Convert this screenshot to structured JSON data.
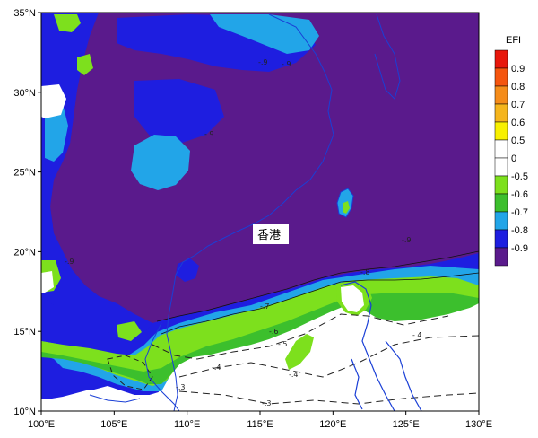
{
  "map": {
    "place_label": "香港",
    "lon_labels": [
      "100°E",
      "105°E",
      "110°E",
      "115°E",
      "120°E",
      "125°E",
      "130°E"
    ],
    "lat_labels": [
      "10°N",
      "15°N",
      "20°N",
      "25°N",
      "30°N",
      "35°N"
    ],
    "contour_labels": [
      "-.9",
      "-.8",
      "-.7",
      "-.6",
      "-.5",
      "-.4",
      "-.3"
    ]
  },
  "legend": {
    "title": "EFI",
    "items": [
      {
        "label": "0.9",
        "color": "#e8170b"
      },
      {
        "label": "0.8",
        "color": "#f5550e"
      },
      {
        "label": "0.7",
        "color": "#f58c1a"
      },
      {
        "label": "0.6",
        "color": "#f5b51d"
      },
      {
        "label": "0.5",
        "color": "#f8f000"
      },
      {
        "label": "0",
        "color": "#ffffff"
      },
      {
        "label": "-0.5",
        "color": "#ffffff"
      },
      {
        "label": "-0.6",
        "color": "#7de01d"
      },
      {
        "label": "-0.7",
        "color": "#3cbf2d"
      },
      {
        "label": "-0.8",
        "color": "#22a5e8"
      },
      {
        "label": "-0.9",
        "color": "#1e1ee0"
      },
      {
        "label": "",
        "color": "#5a1a8c"
      }
    ]
  },
  "colors": {
    "efi_neg_09": "#5a1a8c",
    "efi_neg_08": "#1e1ee0",
    "efi_neg_07": "#22a5e8",
    "efi_neg_06": "#7de01d",
    "efi_neg_05": "#3cbf2d",
    "coastline": "#1a3fd6"
  }
}
